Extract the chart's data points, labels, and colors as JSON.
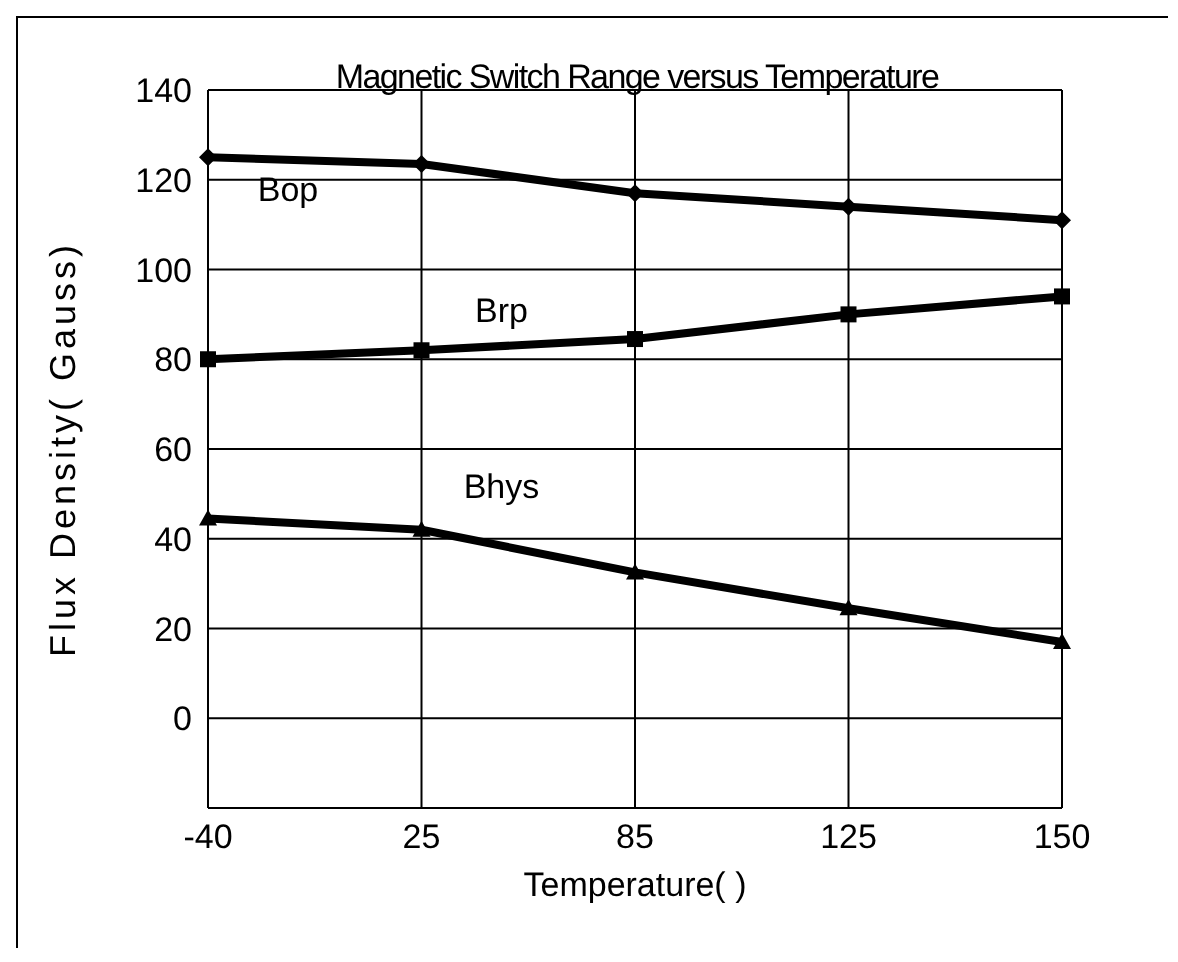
{
  "chart_data": {
    "type": "line",
    "title": "Magnetic Switch Range versus Temperature",
    "xlabel": "Temperature(  )",
    "ylabel": "Flux Density( Gauss)",
    "categories": [
      "-40",
      "25",
      "85",
      "125",
      "150"
    ],
    "series": [
      {
        "name": "Bop",
        "color": "#000000",
        "marker": "diamond",
        "values": [
          125,
          123.5,
          117,
          114,
          111
        ]
      },
      {
        "name": "Brp",
        "color": "#000000",
        "marker": "square",
        "values": [
          80,
          82,
          84.5,
          90,
          94
        ]
      },
      {
        "name": "Bhys",
        "color": "#000000",
        "marker": "triangle",
        "values": [
          44.5,
          42,
          32.5,
          24.5,
          17
        ]
      }
    ],
    "ylim": [
      -20,
      140
    ],
    "yticks": [
      {
        "value": -20,
        "label": null
      },
      0,
      20,
      40,
      60,
      80,
      100,
      120,
      140
    ],
    "grid": true,
    "line_style": "solid"
  }
}
